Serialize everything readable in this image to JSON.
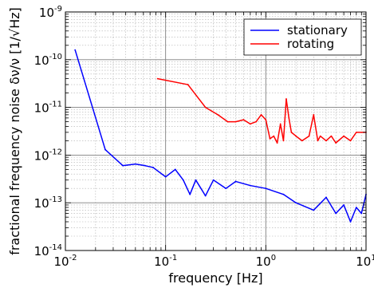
{
  "chart_data": {
    "type": "line",
    "xlabel": "frequency [Hz]",
    "ylabel": "fractional frequency noise δν/ν [1/√Hz]",
    "xscale": "log",
    "yscale": "log",
    "xlim": [
      0.01,
      10
    ],
    "ylim": [
      1e-14,
      1e-09
    ],
    "grid": true,
    "legend_position": "top-right",
    "x_ticks": [
      {
        "base": "10",
        "exp": "-2"
      },
      {
        "base": "10",
        "exp": "-1"
      },
      {
        "base": "10",
        "exp": "0"
      },
      {
        "base": "10",
        "exp": "1"
      }
    ],
    "y_ticks": [
      {
        "base": "10",
        "exp": "-14"
      },
      {
        "base": "10",
        "exp": "-13"
      },
      {
        "base": "10",
        "exp": "-12"
      },
      {
        "base": "10",
        "exp": "-11"
      },
      {
        "base": "10",
        "exp": "-10"
      },
      {
        "base": "10",
        "exp": "-9"
      }
    ],
    "series": [
      {
        "name": "stationary",
        "color": "#0000ff",
        "x": [
          0.0125,
          0.025,
          0.0375,
          0.05,
          0.0625,
          0.075,
          0.1,
          0.125,
          0.15,
          0.175,
          0.2,
          0.25,
          0.3,
          0.4,
          0.5,
          0.7,
          1.0,
          1.5,
          2.0,
          3.0,
          4.0,
          5.0,
          6.0,
          7.0,
          8.0,
          9.0,
          10.0
        ],
        "y": [
          1.6e-10,
          1.3e-12,
          6e-13,
          6.5e-13,
          6e-13,
          5.5e-13,
          3.5e-13,
          5e-13,
          3e-13,
          1.5e-13,
          3e-13,
          1.4e-13,
          3e-13,
          2e-13,
          2.8e-13,
          2.3e-13,
          2e-13,
          1.5e-13,
          1e-13,
          7e-14,
          1.3e-13,
          6e-14,
          9e-14,
          4e-14,
          8e-14,
          6e-14,
          1.5e-13
        ]
      },
      {
        "name": "rotating",
        "color": "#ff0000",
        "x": [
          0.0833,
          0.167,
          0.25,
          0.333,
          0.417,
          0.5,
          0.6,
          0.7,
          0.8,
          0.9,
          1.0,
          1.1,
          1.2,
          1.3,
          1.4,
          1.5,
          1.6,
          1.7,
          1.8,
          2.0,
          2.3,
          2.7,
          3.0,
          3.3,
          3.5,
          4.0,
          4.5,
          5.0,
          6.0,
          7.0,
          8.0,
          10.0
        ],
        "y": [
          4e-11,
          3e-11,
          1e-11,
          7e-12,
          5e-12,
          5e-12,
          5.5e-12,
          4.5e-12,
          5e-12,
          7e-12,
          5.5e-12,
          2.2e-12,
          2.5e-12,
          1.8e-12,
          4.5e-12,
          2e-12,
          1.5e-11,
          6e-12,
          3e-12,
          2.5e-12,
          2e-12,
          2.5e-12,
          7e-12,
          2e-12,
          2.5e-12,
          2e-12,
          2.5e-12,
          1.8e-12,
          2.5e-12,
          2e-12,
          3e-12,
          3e-12
        ]
      }
    ]
  }
}
